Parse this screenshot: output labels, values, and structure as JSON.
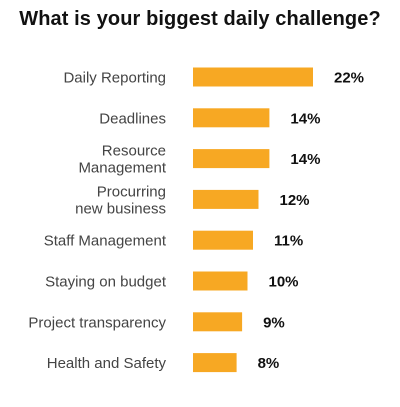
{
  "chart_data": {
    "type": "bar",
    "orientation": "horizontal",
    "title": "What is your biggest daily challenge?",
    "categories": [
      [
        "Daily Reporting"
      ],
      [
        "Deadlines"
      ],
      [
        "Resource",
        "Management"
      ],
      [
        "Procurring",
        "new business"
      ],
      [
        "Staff Management"
      ],
      [
        "Staying on budget"
      ],
      [
        "Project transparency"
      ],
      [
        "Health and Safety"
      ]
    ],
    "values": [
      22,
      14,
      14,
      12,
      11,
      10,
      9,
      8
    ],
    "value_labels": [
      "22%",
      "14%",
      "14%",
      "12%",
      "11%",
      "10%",
      "9%",
      "8%"
    ],
    "unit": "%",
    "xlim": [
      0,
      22
    ],
    "grid": false,
    "legend": "none",
    "bar_color": "#F7A823"
  }
}
